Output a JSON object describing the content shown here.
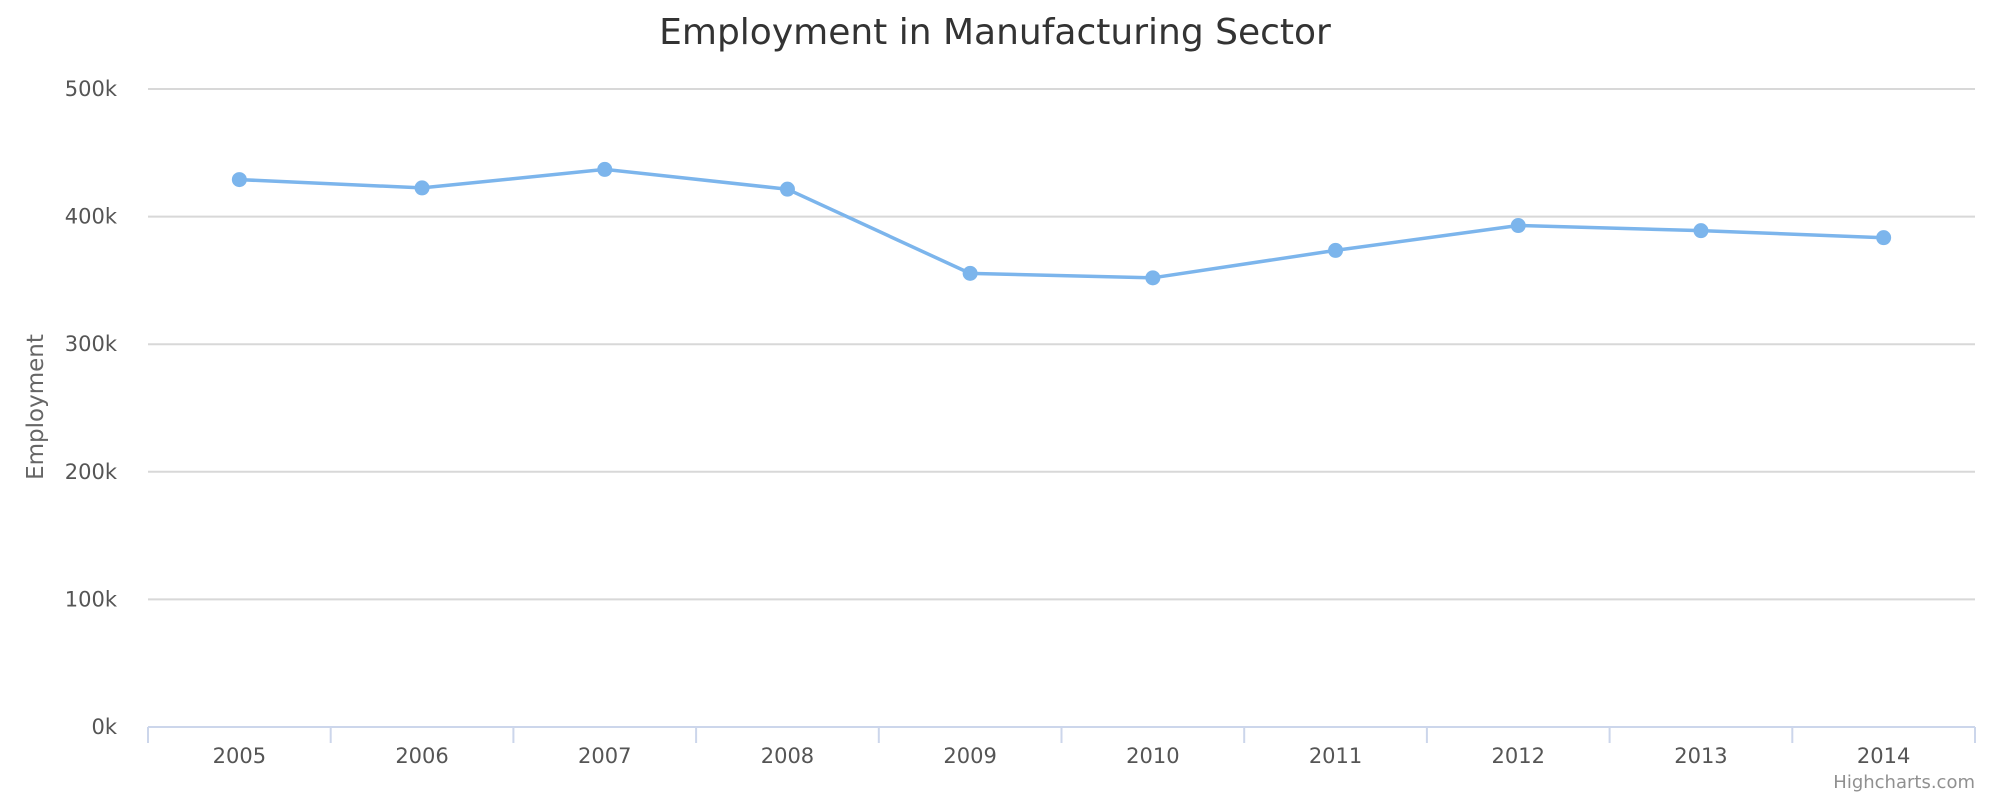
{
  "chart_data": {
    "type": "line",
    "title": "Employment in Manufacturing Sector",
    "ylabel": "Employment",
    "xlabel": "",
    "categories": [
      "2005",
      "2006",
      "2007",
      "2008",
      "2009",
      "2010",
      "2011",
      "2012",
      "2013",
      "2014"
    ],
    "series": [
      {
        "values": [
          429000,
          422500,
          437000,
          421500,
          355500,
          352000,
          373500,
          393000,
          389000,
          383500
        ],
        "color": "#7cb5ec"
      }
    ],
    "ylim": [
      0,
      500000
    ],
    "yticks": [
      0,
      100000,
      200000,
      300000,
      400000,
      500000
    ],
    "ytick_labels": [
      "0k",
      "100k",
      "200k",
      "300k",
      "400k",
      "500k"
    ],
    "grid": true,
    "legend": "none",
    "credit": "Highcharts.com",
    "colors": {
      "gridline": "#d8d8d8",
      "axis": "#ccd6eb",
      "series": "#7cb5ec"
    }
  }
}
